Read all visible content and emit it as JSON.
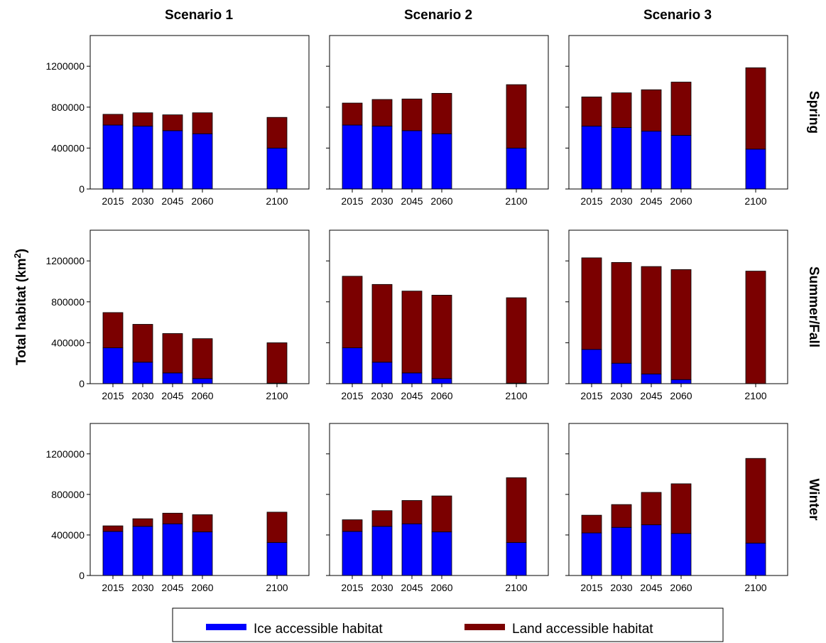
{
  "figure": {
    "ylabel_main": "Total habitat (km",
    "ylabel_sup": "2",
    "ylabel_end": ")"
  },
  "legend": {
    "items": [
      {
        "label": "Ice accessible habitat",
        "color": "#0000ff"
      },
      {
        "label": "Land accessible habitat",
        "color": "#7b0000"
      }
    ]
  },
  "chart_data": {
    "type": "bar",
    "stacked": true,
    "layout": "3x3 grid of panels",
    "columns": [
      "Scenario 1",
      "Scenario 2",
      "Scenario 3"
    ],
    "rows": [
      "Spring",
      "Summer/Fall",
      "Winter"
    ],
    "categories": [
      "2015",
      "2030",
      "2045",
      "2060",
      "2100"
    ],
    "ylim": [
      0,
      1500000
    ],
    "yticks": [
      0,
      400000,
      800000,
      1200000
    ],
    "series_names": [
      "Ice accessible habitat",
      "Land accessible habitat"
    ],
    "series_colors": [
      "#0000ff",
      "#7b0000"
    ],
    "panels": [
      {
        "row": "Spring",
        "column": "Scenario 1",
        "ice": [
          625000,
          615000,
          570000,
          540000,
          400000
        ],
        "land": [
          105000,
          130000,
          155000,
          205000,
          300000
        ]
      },
      {
        "row": "Spring",
        "column": "Scenario 2",
        "ice": [
          625000,
          615000,
          570000,
          540000,
          400000
        ],
        "land": [
          215000,
          260000,
          310000,
          395000,
          620000
        ]
      },
      {
        "row": "Spring",
        "column": "Scenario 3",
        "ice": [
          615000,
          600000,
          565000,
          525000,
          390000
        ],
        "land": [
          285000,
          340000,
          405000,
          520000,
          795000
        ]
      },
      {
        "row": "Summer/Fall",
        "column": "Scenario 1",
        "ice": [
          350000,
          210000,
          105000,
          50000,
          5000
        ],
        "land": [
          345000,
          370000,
          385000,
          390000,
          395000
        ]
      },
      {
        "row": "Summer/Fall",
        "column": "Scenario 2",
        "ice": [
          350000,
          210000,
          105000,
          50000,
          5000
        ],
        "land": [
          700000,
          760000,
          800000,
          815000,
          835000
        ]
      },
      {
        "row": "Summer/Fall",
        "column": "Scenario 3",
        "ice": [
          335000,
          200000,
          95000,
          40000,
          0
        ],
        "land": [
          895000,
          985000,
          1050000,
          1075000,
          1100000
        ]
      },
      {
        "row": "Winter",
        "column": "Scenario 1",
        "ice": [
          435000,
          485000,
          510000,
          430000,
          325000
        ],
        "land": [
          55000,
          75000,
          105000,
          170000,
          300000
        ]
      },
      {
        "row": "Winter",
        "column": "Scenario 2",
        "ice": [
          435000,
          485000,
          510000,
          430000,
          325000
        ],
        "land": [
          115000,
          155000,
          230000,
          355000,
          640000
        ]
      },
      {
        "row": "Winter",
        "column": "Scenario 3",
        "ice": [
          420000,
          475000,
          500000,
          415000,
          320000
        ],
        "land": [
          175000,
          225000,
          320000,
          490000,
          835000
        ]
      }
    ]
  }
}
